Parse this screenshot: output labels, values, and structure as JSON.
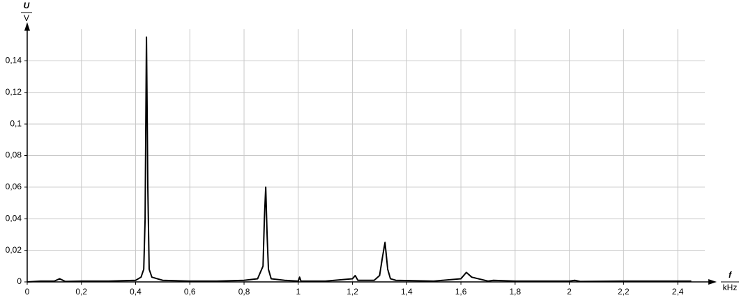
{
  "chart_data": {
    "type": "line",
    "y_label": {
      "symbol": "U",
      "unit": "V"
    },
    "x_label": {
      "symbol": "f",
      "unit": "kHz"
    },
    "x": [
      0,
      0.05,
      0.1,
      0.12,
      0.14,
      0.2,
      0.3,
      0.4,
      0.42,
      0.43,
      0.435,
      0.44,
      0.445,
      0.45,
      0.46,
      0.5,
      0.6,
      0.7,
      0.8,
      0.85,
      0.87,
      0.875,
      0.88,
      0.885,
      0.89,
      0.9,
      0.95,
      1.0,
      1.005,
      1.01,
      1.1,
      1.2,
      1.21,
      1.22,
      1.28,
      1.3,
      1.31,
      1.32,
      1.33,
      1.34,
      1.36,
      1.5,
      1.6,
      1.62,
      1.64,
      1.7,
      1.72,
      1.8,
      2.0,
      2.02,
      2.04,
      2.2,
      2.4,
      2.45
    ],
    "values": [
      0,
      0.0005,
      0.0005,
      0.002,
      0.0003,
      0.0005,
      0.0005,
      0.001,
      0.003,
      0.008,
      0.04,
      0.155,
      0.06,
      0.008,
      0.003,
      0.001,
      0.0005,
      0.0005,
      0.001,
      0.002,
      0.01,
      0.04,
      0.06,
      0.03,
      0.008,
      0.002,
      0.001,
      0.0005,
      0.003,
      0.0005,
      0.0005,
      0.002,
      0.004,
      0.001,
      0.001,
      0.004,
      0.015,
      0.025,
      0.008,
      0.002,
      0.001,
      0.0005,
      0.002,
      0.006,
      0.003,
      0.0005,
      0.001,
      0.0005,
      0.0005,
      0.001,
      0.0003,
      0.0005,
      0.0005,
      0.0005
    ],
    "color": "#000000",
    "xlim": [
      0,
      2.5
    ],
    "ylim": [
      0,
      0.16
    ],
    "xticks": [
      0,
      {
        "value": 0.2,
        "label": "0,2"
      },
      {
        "value": 0.4,
        "label": "0,4"
      },
      {
        "value": 0.6,
        "label": "0,6"
      },
      {
        "value": 0.8,
        "label": "0,8"
      },
      1,
      {
        "value": 1.2,
        "label": "1,2"
      },
      {
        "value": 1.4,
        "label": "1,4"
      },
      {
        "value": 1.6,
        "label": "1,6"
      },
      {
        "value": 1.8,
        "label": "1,8"
      },
      2,
      {
        "value": 2.2,
        "label": "2,2"
      },
      {
        "value": 2.4,
        "label": "2,4"
      }
    ],
    "yticks": [
      0,
      {
        "value": 0.02,
        "label": "0,02"
      },
      {
        "value": 0.04,
        "label": "0,04"
      },
      {
        "value": 0.06,
        "label": "0,06"
      },
      {
        "value": 0.08,
        "label": "0,08"
      },
      {
        "value": 0.1,
        "label": "0,1"
      },
      {
        "value": 0.12,
        "label": "0,12"
      },
      {
        "value": 0.14,
        "label": "0,14"
      }
    ],
    "grid": true
  }
}
